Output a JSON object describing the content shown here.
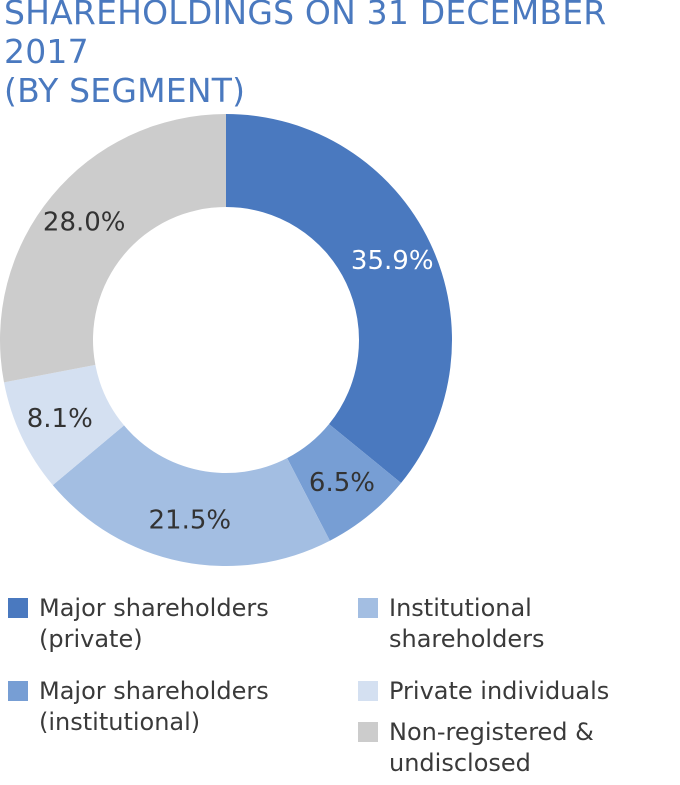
{
  "title": {
    "line1": "SHAREHOLDINGS ON 31 DECEMBER 2017",
    "line2": "(BY SEGMENT)"
  },
  "chart_data": {
    "type": "pie",
    "subtype": "donut",
    "title": "SHAREHOLDINGS ON 31 DECEMBER 2017 (BY SEGMENT)",
    "slices": [
      {
        "name": "Major shareholders (private)",
        "value": 35.9,
        "label": "35.9%",
        "color": "#4a79bf",
        "label_color": "#ffffff"
      },
      {
        "name": "Major shareholders (institutional)",
        "value": 6.5,
        "label": "6.5%",
        "color": "#779ed4",
        "label_color": "#333333"
      },
      {
        "name": "Institutional shareholders",
        "value": 21.5,
        "label": "21.5%",
        "color": "#a3bee2",
        "label_color": "#333333"
      },
      {
        "name": "Private individuals",
        "value": 8.1,
        "label": "8.1%",
        "color": "#d4e0f1",
        "label_color": "#333333"
      },
      {
        "name": "Non-registered & undisclosed",
        "value": 28.0,
        "label": "28.0%",
        "color": "#cccccc",
        "label_color": "#333333"
      }
    ]
  },
  "legend": [
    {
      "line1": "Major shareholders",
      "line2": "(private)",
      "color": "#4a79bf"
    },
    {
      "line1": "Major shareholders",
      "line2": "(institutional)",
      "color": "#779ed4"
    },
    {
      "line1": "Institutional",
      "line2": "shareholders",
      "color": "#a3bee2"
    },
    {
      "line1": "Private individuals",
      "line2": "",
      "color": "#d4e0f1"
    },
    {
      "line1": "Non-registered &",
      "line2": "undisclosed",
      "color": "#cccccc"
    }
  ]
}
